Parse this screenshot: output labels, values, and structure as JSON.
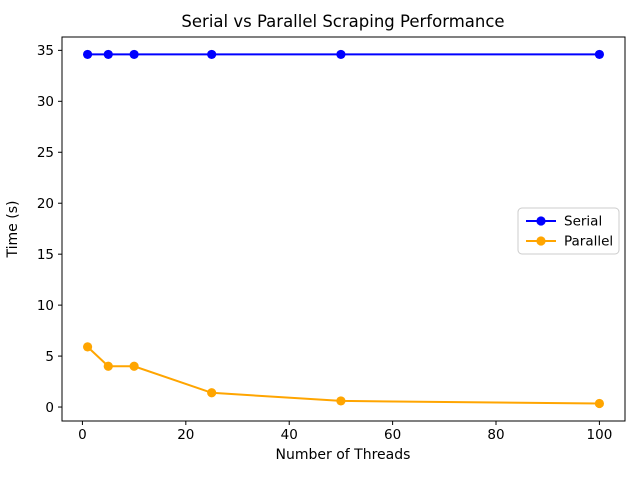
{
  "chart_data": {
    "type": "line",
    "title": "Serial vs Parallel Scraping Performance",
    "xlabel": "Number of Threads",
    "ylabel": "Time (s)",
    "x": [
      1,
      5,
      10,
      25,
      50,
      100
    ],
    "series": [
      {
        "name": "Serial",
        "color": "#0000ff",
        "values": [
          34.6,
          34.6,
          34.6,
          34.6,
          34.6,
          34.6
        ]
      },
      {
        "name": "Parallel",
        "color": "#ffa500",
        "values": [
          5.9,
          4.0,
          4.0,
          1.4,
          0.6,
          0.35
        ]
      }
    ],
    "xticks": [
      0,
      20,
      40,
      60,
      80,
      100
    ],
    "yticks": [
      0,
      5,
      10,
      15,
      20,
      25,
      30,
      35
    ],
    "xlim": [
      -3.95,
      104.95
    ],
    "ylim": [
      -1.37,
      36.31
    ],
    "grid": false,
    "marker": "circle",
    "legend": {
      "position": "center right",
      "entries": [
        "Serial",
        "Parallel"
      ]
    },
    "background": "#ffffff",
    "spine_color": "#000000"
  }
}
